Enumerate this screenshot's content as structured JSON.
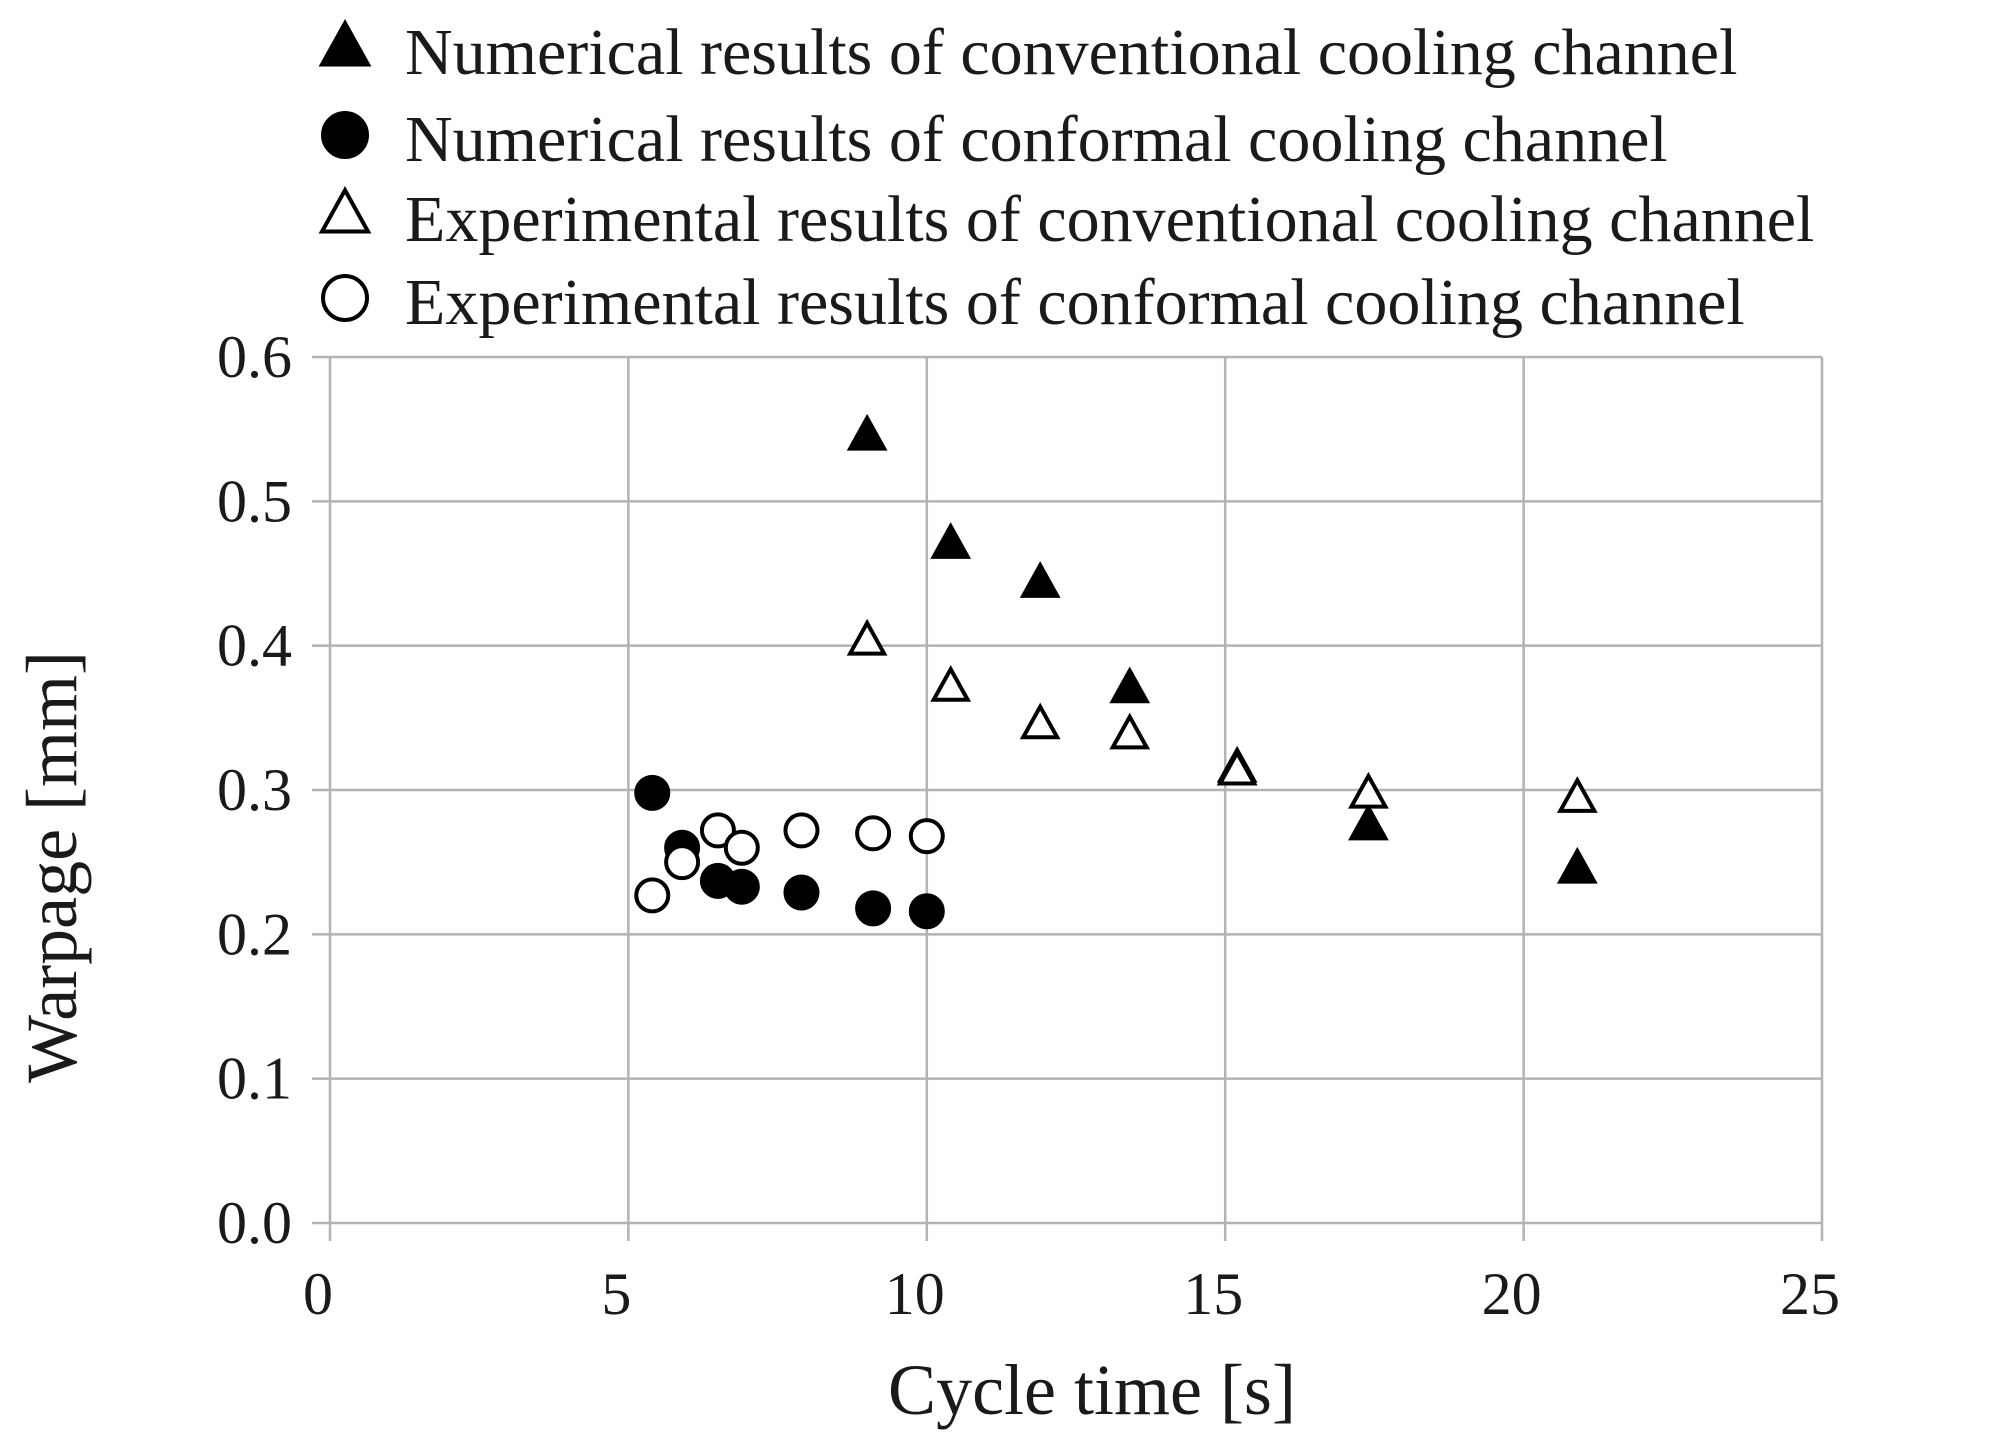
{
  "chart_data": {
    "type": "scatter",
    "title": "",
    "xlabel": "Cycle time [s]",
    "ylabel": "Warpage [mm]",
    "xlim": [
      0,
      25
    ],
    "ylim": [
      0,
      0.6
    ],
    "x_ticks": [
      "0",
      "5",
      "10",
      "15",
      "20",
      "25"
    ],
    "y_ticks": [
      "0.0",
      "0.1",
      "0.2",
      "0.3",
      "0.4",
      "0.5",
      "0.6"
    ],
    "grid": true,
    "legend_position": "top",
    "series": [
      {
        "name": "Numerical results of conventional cooling channel",
        "marker": "triangle-filled",
        "points": [
          [
            9.0,
            0.545
          ],
          [
            10.4,
            0.47
          ],
          [
            11.9,
            0.443
          ],
          [
            13.4,
            0.37
          ],
          [
            15.2,
            0.315
          ],
          [
            17.4,
            0.275
          ],
          [
            20.9,
            0.245
          ]
        ]
      },
      {
        "name": "Numerical results of conformal cooling channel",
        "marker": "circle-filled",
        "points": [
          [
            5.4,
            0.298
          ],
          [
            5.9,
            0.26
          ],
          [
            6.5,
            0.237
          ],
          [
            6.9,
            0.233
          ],
          [
            7.9,
            0.229
          ],
          [
            9.1,
            0.218
          ],
          [
            10.0,
            0.216
          ]
        ]
      },
      {
        "name": "Experimental results of conventional cooling channel",
        "marker": "triangle-open",
        "points": [
          [
            9.0,
            0.403
          ],
          [
            10.4,
            0.371
          ],
          [
            11.9,
            0.345
          ],
          [
            13.4,
            0.338
          ],
          [
            15.2,
            0.313
          ],
          [
            17.4,
            0.297
          ],
          [
            20.9,
            0.294
          ]
        ]
      },
      {
        "name": "Experimental results of conformal cooling channel",
        "marker": "circle-open",
        "points": [
          [
            5.4,
            0.227
          ],
          [
            5.9,
            0.25
          ],
          [
            6.5,
            0.272
          ],
          [
            6.9,
            0.26
          ],
          [
            7.9,
            0.272
          ],
          [
            9.1,
            0.27
          ],
          [
            10.0,
            0.268
          ]
        ]
      }
    ]
  },
  "colors": {
    "background": "#ffffff",
    "grid": "#b3b3b3",
    "marker": "#000000",
    "text": "#1a1a1a"
  }
}
